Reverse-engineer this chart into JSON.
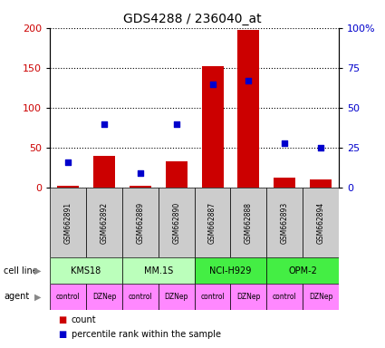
{
  "title": "GDS4288 / 236040_at",
  "samples": [
    "GSM662891",
    "GSM662892",
    "GSM662889",
    "GSM662890",
    "GSM662887",
    "GSM662888",
    "GSM662893",
    "GSM662894"
  ],
  "bar_values": [
    3,
    40,
    3,
    33,
    152,
    197,
    13,
    11
  ],
  "dot_values": [
    16,
    40,
    9,
    40,
    65,
    67,
    28,
    25
  ],
  "bar_color": "#cc0000",
  "dot_color": "#0000cc",
  "ylim_left": [
    0,
    200
  ],
  "ylim_right": [
    0,
    100
  ],
  "yticks_left": [
    0,
    50,
    100,
    150,
    200
  ],
  "ytick_labels_left": [
    "0",
    "50",
    "100",
    "150",
    "200"
  ],
  "yticks_right": [
    0,
    25,
    50,
    75,
    100
  ],
  "ytick_labels_right": [
    "0",
    "25",
    "50",
    "75",
    "100%"
  ],
  "cell_lines": [
    {
      "name": "KMS18",
      "start": 0,
      "end": 2,
      "color": "#bbffbb"
    },
    {
      "name": "MM.1S",
      "start": 2,
      "end": 4,
      "color": "#bbffbb"
    },
    {
      "name": "NCI-H929",
      "start": 4,
      "end": 6,
      "color": "#44ee44"
    },
    {
      "name": "OPM-2",
      "start": 6,
      "end": 8,
      "color": "#44ee44"
    }
  ],
  "agents": [
    "control",
    "DZNep",
    "control",
    "DZNep",
    "control",
    "DZNep",
    "control",
    "DZNep"
  ],
  "agent_color": "#ff88ff",
  "cell_line_label": "cell line",
  "agent_label": "agent",
  "legend_bar_label": "count",
  "legend_dot_label": "percentile rank within the sample",
  "background_color": "#ffffff",
  "sample_box_color": "#cccccc"
}
